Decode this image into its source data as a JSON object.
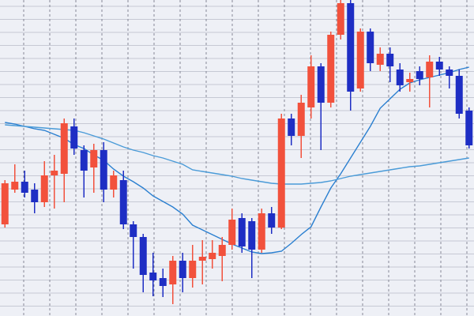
{
  "chart_data": {
    "type": "candlestick",
    "ylim": [
      0,
      100
    ],
    "grid": true,
    "up_color": "#f2513c",
    "down_color": "#1e2ec4",
    "categories": [
      null,
      null,
      null,
      null,
      null,
      null,
      null,
      null,
      null,
      null,
      null,
      null,
      null,
      null,
      null,
      null,
      null,
      null,
      null,
      null,
      null,
      null,
      null,
      null,
      null,
      null,
      null,
      null,
      null,
      null,
      null,
      null,
      null,
      null,
      null,
      null,
      null,
      null,
      null,
      null,
      null,
      null,
      null,
      null,
      null,
      null,
      null,
      null
    ],
    "open": [
      29,
      40,
      42.5,
      40,
      36,
      44.5,
      45,
      60,
      52.5,
      47,
      52.5,
      40,
      43,
      29,
      25,
      13.75,
      12,
      10,
      17.5,
      12,
      17.5,
      18,
      19,
      22.5,
      31,
      30,
      21,
      32.5,
      28,
      62.5,
      57,
      66,
      79,
      67.5,
      89,
      99,
      72,
      90,
      79.5,
      83,
      78,
      74,
      77.5,
      75.5,
      80.5,
      78,
      76,
      65
    ],
    "high": [
      43,
      48,
      46,
      42,
      49,
      51,
      62.5,
      62.5,
      54,
      54.5,
      55,
      46,
      46,
      30,
      26,
      20,
      15,
      19,
      20,
      22.5,
      24,
      24,
      25,
      34,
      32.5,
      31,
      34,
      34.5,
      64,
      64,
      70,
      82.5,
      80,
      90,
      100,
      100,
      91,
      91,
      85,
      85,
      80,
      77,
      79,
      82.5,
      82,
      79,
      78,
      66
    ],
    "low": [
      28,
      39,
      37.5,
      32.5,
      34.5,
      34,
      36,
      51,
      37.5,
      39,
      36,
      37.5,
      27.5,
      15,
      7.5,
      6.25,
      6,
      3.75,
      7.5,
      9,
      10,
      15,
      11,
      21,
      20,
      12,
      20,
      26,
      27.5,
      54,
      50,
      62.5,
      52.5,
      66,
      87.5,
      65,
      71,
      77.5,
      77.5,
      74,
      71,
      71,
      73,
      66,
      76,
      72,
      62.5,
      53
    ],
    "close": [
      42,
      42.5,
      39,
      36,
      44.5,
      46,
      61,
      53,
      46,
      52.5,
      40,
      44.5,
      29,
      25,
      13,
      11.25,
      9.5,
      17.5,
      12,
      17.5,
      18.75,
      20,
      22.5,
      30.5,
      22,
      21,
      32.5,
      28,
      62.5,
      57,
      67.5,
      79,
      67.5,
      89,
      99,
      71,
      90,
      80,
      83,
      79,
      73,
      75,
      75,
      80.5,
      78,
      76,
      64,
      54
    ],
    "lines": [
      {
        "color": "#2a7fd0",
        "values": [
          61.25,
          60.75,
          60,
          59.25,
          58.75,
          57.5,
          56.25,
          54.25,
          53,
          51,
          49.25,
          46.5,
          44.25,
          42.5,
          40.5,
          38,
          36.25,
          34.5,
          32.25,
          28.75,
          27.25,
          25.75,
          24.25,
          22.75,
          21.5,
          20.25,
          19.75,
          20,
          20.5,
          23,
          25.75,
          28.25,
          34.5,
          40.5,
          45,
          50,
          55,
          60,
          65.75,
          68.75,
          71.75,
          73.75,
          74.75,
          75.5,
          76.25,
          77,
          78,
          78.75
        ]
      },
      {
        "color": "#4a9bd8",
        "values": [
          60.5,
          60.25,
          60,
          59.75,
          59.5,
          59.25,
          59,
          58.75,
          58,
          57,
          56,
          54.75,
          53.5,
          52.5,
          51.75,
          50.75,
          50,
          49,
          48,
          46.25,
          45.75,
          45.25,
          44.75,
          44.25,
          43.5,
          43,
          42.5,
          42,
          41.75,
          41.75,
          41.75,
          42,
          42.25,
          42.75,
          43.5,
          44.25,
          44.75,
          45.25,
          45.75,
          46.25,
          46.75,
          47.25,
          47.5,
          48,
          48.5,
          49,
          49.5,
          50
        ]
      }
    ]
  }
}
